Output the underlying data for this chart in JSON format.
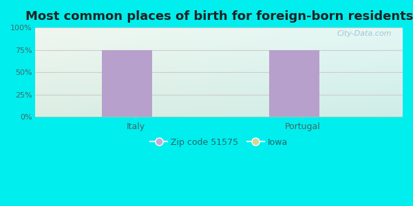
{
  "title": "Most common places of birth for foreign-born residents",
  "categories": [
    "Italy",
    "Portugal"
  ],
  "zip_values": [
    75,
    75
  ],
  "bar_color": "#B8A0CC",
  "bg_outer": "#00EEEE",
  "yticks": [
    0,
    25,
    50,
    75,
    100
  ],
  "ytick_labels": [
    "0%",
    "25%",
    "50%",
    "75%",
    "100%"
  ],
  "ylim": [
    0,
    100
  ],
  "legend_zip_label": "Zip code 51575",
  "legend_iowa_label": "Iowa",
  "legend_zip_color": "#C8A8D4",
  "legend_iowa_color": "#D4D890",
  "title_fontsize": 13,
  "watermark": "City-Data.com",
  "grid_color": "#cccccc",
  "bg_gradient_top": "#D0EDD8",
  "bg_gradient_bottom": "#EEF8EE",
  "bg_top_fade": "#C8E8E8"
}
